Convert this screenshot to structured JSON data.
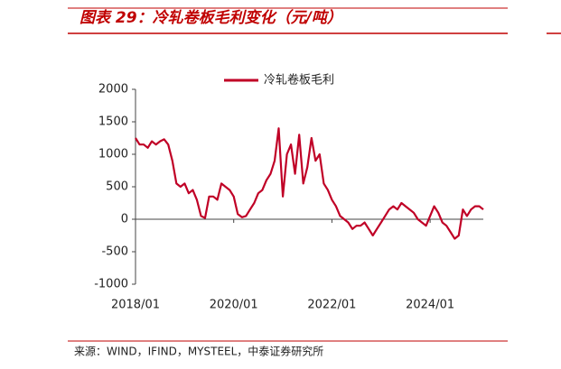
{
  "chart_data": {
    "type": "line",
    "title": "图表 29：冷轧卷板毛利变化（元/吨）",
    "source": "来源：WIND，IFIND，MYSTEEL，中泰证券研究所",
    "x": [
      "2018/01",
      "2018/02",
      "2018/03",
      "2018/04",
      "2018/05",
      "2018/06",
      "2018/07",
      "2018/08",
      "2018/09",
      "2018/10",
      "2018/11",
      "2018/12",
      "2019/01",
      "2019/02",
      "2019/03",
      "2019/04",
      "2019/05",
      "2019/06",
      "2019/07",
      "2019/08",
      "2019/09",
      "2019/10",
      "2019/11",
      "2019/12",
      "2020/01",
      "2020/02",
      "2020/03",
      "2020/04",
      "2020/05",
      "2020/06",
      "2020/07",
      "2020/08",
      "2020/09",
      "2020/10",
      "2020/11",
      "2020/12",
      "2021/01",
      "2021/02",
      "2021/03",
      "2021/04",
      "2021/05",
      "2021/06",
      "2021/07",
      "2021/08",
      "2021/09",
      "2021/10",
      "2021/11",
      "2021/12",
      "2022/01",
      "2022/02",
      "2022/03",
      "2022/04",
      "2022/05",
      "2022/06",
      "2022/07",
      "2022/08",
      "2022/09",
      "2022/10",
      "2022/11",
      "2022/12",
      "2023/01",
      "2023/02",
      "2023/03",
      "2023/04",
      "2023/05",
      "2023/06",
      "2023/07",
      "2023/08",
      "2023/09",
      "2023/10",
      "2023/11",
      "2023/12",
      "2024/01",
      "2024/02",
      "2024/03",
      "2024/04",
      "2024/05",
      "2024/06",
      "2024/07",
      "2024/08",
      "2024/09",
      "2024/10",
      "2024/11",
      "2024/12",
      "2025/01",
      "2025/02"
    ],
    "series": [
      {
        "name": "冷轧卷板毛利",
        "color": "#c00026",
        "values": [
          1250,
          1150,
          1150,
          1100,
          1200,
          1150,
          1200,
          1230,
          1150,
          900,
          550,
          500,
          550,
          400,
          450,
          300,
          50,
          20,
          350,
          350,
          300,
          550,
          500,
          450,
          350,
          80,
          30,
          50,
          150,
          250,
          400,
          450,
          600,
          700,
          900,
          1400,
          350,
          1000,
          1150,
          700,
          1300,
          550,
          800,
          1250,
          900,
          1000,
          550,
          450,
          300,
          200,
          50,
          0,
          -50,
          -150,
          -100,
          -100,
          -50,
          -150,
          -250,
          -150,
          -50,
          50,
          150,
          200,
          150,
          250,
          200,
          150,
          100,
          0,
          -50,
          -100,
          50,
          200,
          100,
          -50,
          -100,
          -200,
          -300,
          -250,
          150,
          50,
          150,
          200,
          200,
          150
        ]
      }
    ],
    "xlim": [
      "2018/01",
      "2025/02"
    ],
    "xticks": [
      "2018/01",
      "2020/01",
      "2022/01",
      "2024/01"
    ],
    "ylim": [
      -1000,
      2000
    ],
    "yticks": [
      -1000,
      -500,
      0,
      500,
      1000,
      1500,
      2000
    ]
  }
}
